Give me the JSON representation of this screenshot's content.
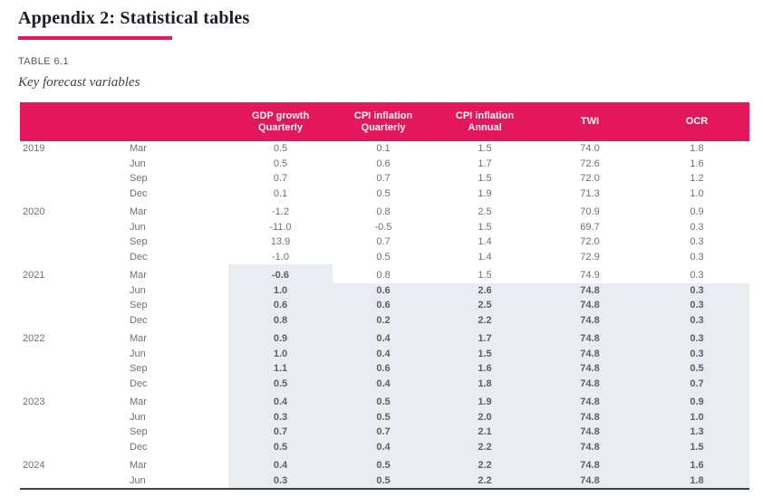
{
  "header": {
    "page_title": "Appendix 2: Statistical tables",
    "table_label": "TABLE 6.1",
    "table_caption": "Key forecast variables"
  },
  "colors": {
    "accent_pink": "#e5175c",
    "forecast_shade": "#e9edf2"
  },
  "table": {
    "column_headers": {
      "gdp": "GDP growth\nQuarterly",
      "cpi_q": "CPI inflation\nQuarterly",
      "cpi_a": "CPI inflation\nAnnual",
      "twi": "TWI",
      "ocr": "OCR"
    },
    "groups": [
      {
        "year": "2019",
        "rows": [
          {
            "month": "Mar",
            "gdp": "0.5",
            "cpi_q": "0.1",
            "cpi_a": "1.5",
            "twi": "74.0",
            "ocr": "1.8"
          },
          {
            "month": "Jun",
            "gdp": "0.5",
            "cpi_q": "0.6",
            "cpi_a": "1.7",
            "twi": "72.6",
            "ocr": "1.6"
          },
          {
            "month": "Sep",
            "gdp": "0.7",
            "cpi_q": "0.7",
            "cpi_a": "1.5",
            "twi": "72.0",
            "ocr": "1.2"
          },
          {
            "month": "Dec",
            "gdp": "0.1",
            "cpi_q": "0.5",
            "cpi_a": "1.9",
            "twi": "71.3",
            "ocr": "1.0"
          }
        ]
      },
      {
        "year": "2020",
        "rows": [
          {
            "month": "Mar",
            "gdp": "-1.2",
            "cpi_q": "0.8",
            "cpi_a": "2.5",
            "twi": "70.9",
            "ocr": "0.9"
          },
          {
            "month": "Jun",
            "gdp": "-11.0",
            "cpi_q": "-0.5",
            "cpi_a": "1.5",
            "twi": "69.7",
            "ocr": "0.3"
          },
          {
            "month": "Sep",
            "gdp": "13.9",
            "cpi_q": "0.7",
            "cpi_a": "1.4",
            "twi": "72.0",
            "ocr": "0.3"
          },
          {
            "month": "Dec",
            "gdp": "-1.0",
            "cpi_q": "0.5",
            "cpi_a": "1.4",
            "twi": "72.9",
            "ocr": "0.3"
          }
        ]
      },
      {
        "year": "2021",
        "rows": [
          {
            "month": "Mar",
            "gdp": "-0.6",
            "cpi_q": "0.8",
            "cpi_a": "1.5",
            "twi": "74.9",
            "ocr": "0.3"
          },
          {
            "month": "Jun",
            "gdp": "1.0",
            "cpi_q": "0.6",
            "cpi_a": "2.6",
            "twi": "74.8",
            "ocr": "0.3"
          },
          {
            "month": "Sep",
            "gdp": "0.6",
            "cpi_q": "0.6",
            "cpi_a": "2.5",
            "twi": "74.8",
            "ocr": "0.3"
          },
          {
            "month": "Dec",
            "gdp": "0.8",
            "cpi_q": "0.2",
            "cpi_a": "2.2",
            "twi": "74.8",
            "ocr": "0.3"
          }
        ]
      },
      {
        "year": "2022",
        "rows": [
          {
            "month": "Mar",
            "gdp": "0.9",
            "cpi_q": "0.4",
            "cpi_a": "1.7",
            "twi": "74.8",
            "ocr": "0.3"
          },
          {
            "month": "Jun",
            "gdp": "1.0",
            "cpi_q": "0.4",
            "cpi_a": "1.5",
            "twi": "74.8",
            "ocr": "0.3"
          },
          {
            "month": "Sep",
            "gdp": "1.1",
            "cpi_q": "0.6",
            "cpi_a": "1.6",
            "twi": "74.8",
            "ocr": "0.5"
          },
          {
            "month": "Dec",
            "gdp": "0.5",
            "cpi_q": "0.4",
            "cpi_a": "1.8",
            "twi": "74.8",
            "ocr": "0.7"
          }
        ]
      },
      {
        "year": "2023",
        "rows": [
          {
            "month": "Mar",
            "gdp": "0.4",
            "cpi_q": "0.5",
            "cpi_a": "1.9",
            "twi": "74.8",
            "ocr": "0.9"
          },
          {
            "month": "Jun",
            "gdp": "0.3",
            "cpi_q": "0.5",
            "cpi_a": "2.0",
            "twi": "74.8",
            "ocr": "1.0"
          },
          {
            "month": "Sep",
            "gdp": "0.7",
            "cpi_q": "0.7",
            "cpi_a": "2.1",
            "twi": "74.8",
            "ocr": "1.3"
          },
          {
            "month": "Dec",
            "gdp": "0.5",
            "cpi_q": "0.4",
            "cpi_a": "2.2",
            "twi": "74.8",
            "ocr": "1.5"
          }
        ]
      },
      {
        "year": "2024",
        "rows": [
          {
            "month": "Mar",
            "gdp": "0.4",
            "cpi_q": "0.5",
            "cpi_a": "2.2",
            "twi": "74.8",
            "ocr": "1.6"
          },
          {
            "month": "Jun",
            "gdp": "0.3",
            "cpi_q": "0.5",
            "cpi_a": "2.2",
            "twi": "74.8",
            "ocr": "1.8"
          }
        ]
      }
    ]
  }
}
